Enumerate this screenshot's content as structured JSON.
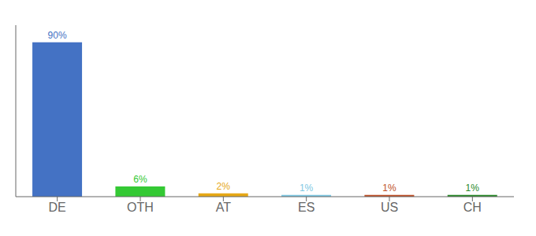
{
  "chart_data": {
    "type": "bar",
    "categories": [
      "DE",
      "OTH",
      "AT",
      "ES",
      "US",
      "CH"
    ],
    "values": [
      90,
      6,
      2,
      1,
      1,
      1
    ],
    "value_labels": [
      "90%",
      "6%",
      "2%",
      "1%",
      "1%",
      "1%"
    ],
    "colors": [
      "#4472c4",
      "#34c934",
      "#e6a817",
      "#7ec8e3",
      "#c0522a",
      "#2a8a2a"
    ],
    "ylim": [
      0,
      100
    ],
    "grid": false,
    "data_labels": true,
    "tick_labels": "x"
  }
}
